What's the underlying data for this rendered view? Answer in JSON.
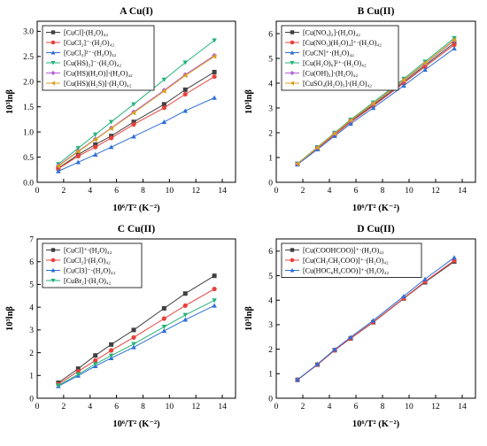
{
  "figure": {
    "panels": [
      {
        "title": "A Cu(I)"
      },
      {
        "title": "B Cu(II)"
      },
      {
        "title": "C Cu(II)"
      },
      {
        "title": "D Cu(II)"
      }
    ]
  },
  "chart_data": [
    {
      "type": "line",
      "title": "A Cu(I)",
      "xlabel": "10⁶/T² (K⁻²)",
      "ylabel": "10³lnβ",
      "xlim": [
        0,
        15
      ],
      "ylim": [
        0,
        3.2
      ],
      "xticks": [
        0,
        2,
        4,
        6,
        8,
        10,
        12,
        14
      ],
      "yticks": [
        0.0,
        0.5,
        1.0,
        1.5,
        2.0,
        2.5,
        3.0
      ],
      "ytick_decimals": 1,
      "legend_position": "top-left",
      "x": [
        1.6,
        3.1,
        4.4,
        5.6,
        7.3,
        9.6,
        11.2,
        13.4
      ],
      "series": [
        {
          "name": "[CuCl]·(H₂O)₄₂",
          "color": "#404040",
          "marker": "square",
          "values": [
            0.28,
            0.55,
            0.75,
            0.92,
            1.2,
            1.55,
            1.84,
            2.19
          ]
        },
        {
          "name": "[CuCl₂]⁻·(H₂O)₄₂",
          "color": "#e8413c",
          "marker": "circle",
          "values": [
            0.27,
            0.52,
            0.7,
            0.88,
            1.15,
            1.48,
            1.75,
            2.1
          ]
        },
        {
          "name": "[CuCl₃]²⁻·(H₂O)₄₂",
          "color": "#2e6fd9",
          "marker": "triangle-up",
          "values": [
            0.22,
            0.4,
            0.55,
            0.7,
            0.91,
            1.2,
            1.42,
            1.68
          ]
        },
        {
          "name": "[Cu(HS)₂]⁻·(H₂O)₄₂",
          "color": "#26b37a",
          "marker": "triangle-down",
          "values": [
            0.36,
            0.68,
            0.95,
            1.2,
            1.55,
            2.04,
            2.38,
            2.82
          ]
        },
        {
          "name": "[Cu(HS)(H₂O)]·(H₂O)₄₂",
          "color": "#b45fd6",
          "marker": "diamond",
          "values": [
            0.33,
            0.62,
            0.86,
            1.08,
            1.4,
            1.83,
            2.14,
            2.52
          ]
        },
        {
          "name": "[Cu(HS)(H₂S)]·(H₂O)₄₂",
          "color": "#d9a21b",
          "marker": "triangle-left",
          "values": [
            0.32,
            0.61,
            0.85,
            1.07,
            1.38,
            1.81,
            2.12,
            2.5
          ]
        }
      ]
    },
    {
      "type": "line",
      "title": "B Cu(II)",
      "xlabel": "10⁶/T² (K⁻²)",
      "ylabel": "10³lnβ",
      "xlim": [
        0,
        15
      ],
      "ylim": [
        0,
        6.5
      ],
      "xticks": [
        0,
        2,
        4,
        6,
        8,
        10,
        12,
        14
      ],
      "yticks": [
        0,
        1,
        2,
        3,
        4,
        5,
        6
      ],
      "ytick_decimals": 0,
      "legend_position": "top-left",
      "x": [
        1.6,
        3.1,
        4.4,
        5.6,
        7.3,
        9.6,
        11.2,
        13.4
      ],
      "series": [
        {
          "name": "[Cu(NO₃)₂]·(H₂O)₄₂",
          "color": "#404040",
          "marker": "square",
          "values": [
            0.74,
            1.38,
            1.94,
            2.45,
            3.12,
            4.05,
            4.72,
            5.62
          ]
        },
        {
          "name": "[Cu(NO₃)(H₂O)₄]⁺·(H₂O)₄₂",
          "color": "#e8413c",
          "marker": "circle",
          "values": [
            0.73,
            1.36,
            1.92,
            2.43,
            3.08,
            4.0,
            4.66,
            5.55
          ]
        },
        {
          "name": "[CuCN]⁺·(H₂O)₄₂",
          "color": "#2e6fd9",
          "marker": "triangle-up",
          "values": [
            0.72,
            1.33,
            1.87,
            2.36,
            3.0,
            3.9,
            4.54,
            5.4
          ]
        },
        {
          "name": "[Cu(H₂O)₆]²⁺·(H₂O)₄₂",
          "color": "#26b37a",
          "marker": "triangle-down",
          "values": [
            0.76,
            1.42,
            2.0,
            2.53,
            3.22,
            4.18,
            4.87,
            5.82
          ]
        },
        {
          "name": "[Cu(OH)₂]·(H₂O)₄₂",
          "color": "#b45fd6",
          "marker": "diamond",
          "values": [
            0.75,
            1.4,
            1.97,
            2.49,
            3.17,
            4.11,
            4.79,
            5.72
          ]
        },
        {
          "name": "[CuSO₄(H₂O)₅]·(H₂O)₄₂",
          "color": "#d9a21b",
          "marker": "triangle-left",
          "values": [
            0.75,
            1.4,
            1.97,
            2.5,
            3.18,
            4.13,
            4.81,
            5.75
          ]
        }
      ]
    },
    {
      "type": "line",
      "title": "C Cu(II)",
      "xlabel": "10⁶/T² (K⁻²)",
      "ylabel": "10³lnβ",
      "xlim": [
        0,
        15
      ],
      "ylim": [
        0,
        7
      ],
      "xticks": [
        0,
        2,
        4,
        6,
        8,
        10,
        12,
        14
      ],
      "yticks": [
        0,
        1,
        2,
        3,
        4,
        5,
        6,
        7
      ],
      "ytick_decimals": 0,
      "legend_position": "top-left",
      "x": [
        1.6,
        3.1,
        4.4,
        5.6,
        7.3,
        9.6,
        11.2,
        13.4
      ],
      "series": [
        {
          "name": "[CuCl]⁺·(H₂O)₄₂",
          "color": "#404040",
          "marker": "square",
          "values": [
            0.68,
            1.3,
            1.88,
            2.36,
            3.0,
            3.95,
            4.6,
            5.38
          ]
        },
        {
          "name": "[CuCl₂]·(H₂O)₄₂",
          "color": "#e8413c",
          "marker": "circle",
          "values": [
            0.62,
            1.18,
            1.66,
            2.1,
            2.67,
            3.5,
            4.07,
            4.8
          ]
        },
        {
          "name": "[CuCl3]⁻·(H₂O)₄₂",
          "color": "#2e6fd9",
          "marker": "triangle-up",
          "values": [
            0.53,
            0.99,
            1.41,
            1.76,
            2.24,
            2.96,
            3.45,
            4.07
          ]
        },
        {
          "name": "[CuBr₂]·(H₂O)₄₂",
          "color": "#26b37a",
          "marker": "triangle-down",
          "values": [
            0.56,
            1.05,
            1.5,
            1.87,
            2.38,
            3.14,
            3.66,
            4.3
          ]
        }
      ]
    },
    {
      "type": "line",
      "title": "D Cu(II)",
      "xlabel": "10⁶/T² (K⁻²)",
      "ylabel": "10³lnβ",
      "xlim": [
        0,
        15
      ],
      "ylim": [
        0,
        6.5
      ],
      "xticks": [
        0,
        2,
        4,
        6,
        8,
        10,
        12,
        14
      ],
      "yticks": [
        0,
        1,
        2,
        3,
        4,
        5,
        6
      ],
      "ytick_decimals": 0,
      "legend_position": "top-left",
      "x": [
        1.6,
        3.1,
        4.4,
        5.6,
        7.3,
        9.6,
        11.2,
        13.4
      ],
      "series": [
        {
          "name": "[Cu(COOHCOO)]⁺·(H₂O)₄₂",
          "color": "#404040",
          "marker": "square",
          "values": [
            0.75,
            1.37,
            1.96,
            2.44,
            3.1,
            4.07,
            4.73,
            5.58
          ]
        },
        {
          "name": "[Cu(CH₃CH₂COO)]⁺·(H₂O)₄₂",
          "color": "#e8413c",
          "marker": "circle",
          "values": [
            0.75,
            1.37,
            1.96,
            2.45,
            3.11,
            4.08,
            4.76,
            5.62
          ]
        },
        {
          "name": "[Cu(HOC₆H₄COO)]⁺·(H₂O)₄₂",
          "color": "#2e6fd9",
          "marker": "triangle-up",
          "values": [
            0.76,
            1.39,
            1.99,
            2.49,
            3.17,
            4.16,
            4.86,
            5.74
          ]
        }
      ]
    }
  ]
}
